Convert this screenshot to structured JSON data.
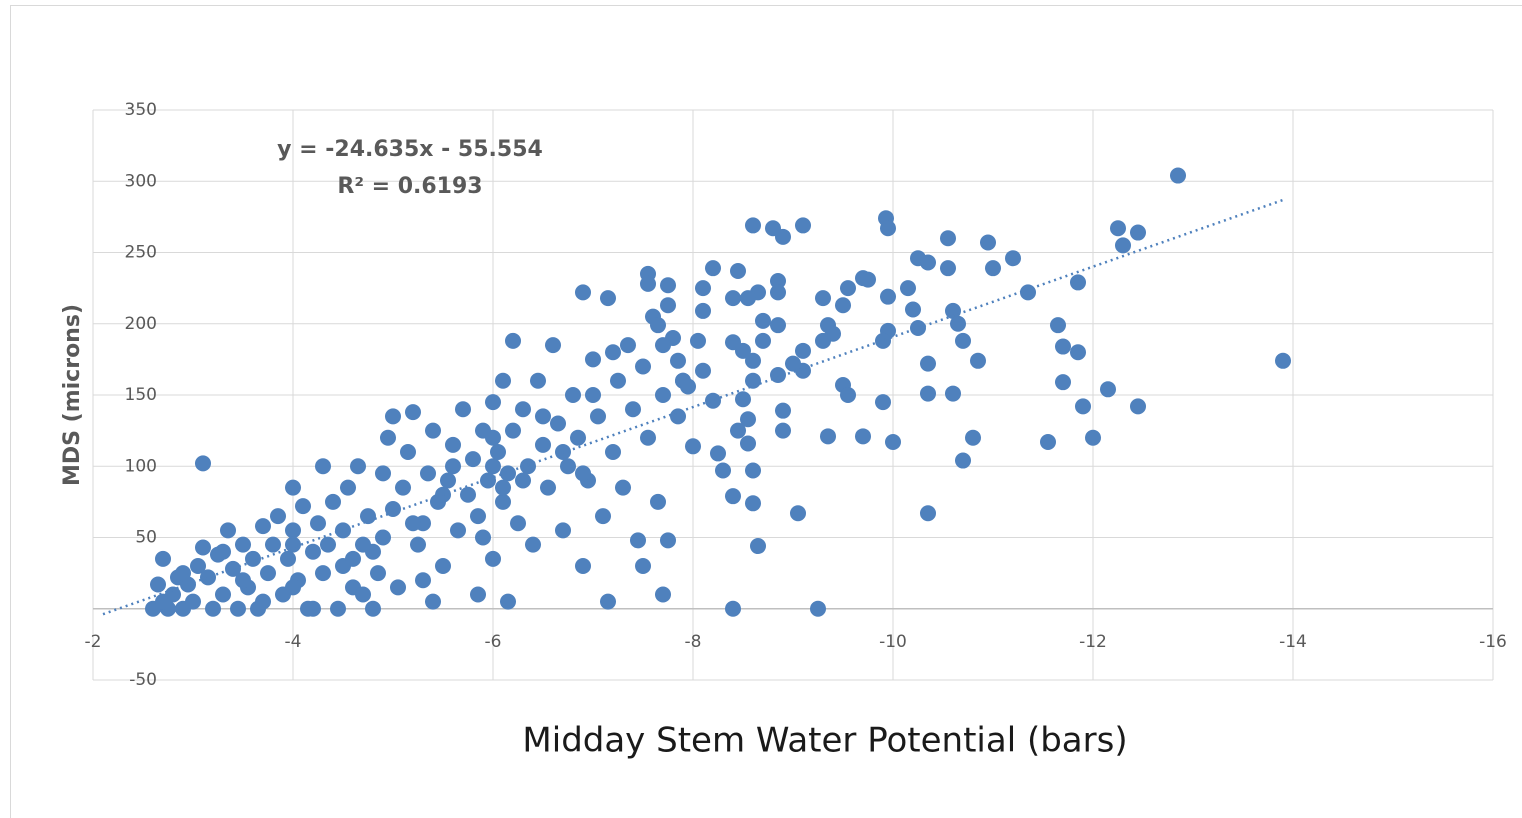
{
  "chart_data": {
    "type": "scatter",
    "x_label": "Midday Stem Water Potential (bars)",
    "y_label": "MDS (microns)",
    "color": "#4f81bd",
    "grid": true,
    "xlim": [
      -2,
      -16
    ],
    "xticks": [
      -2,
      -4,
      -6,
      -8,
      -10,
      -12,
      -14,
      -16
    ],
    "ylim": [
      -50,
      350
    ],
    "yticks": [
      -50,
      0,
      50,
      100,
      150,
      200,
      250,
      300,
      350
    ],
    "trendline": {
      "equation": "y = -24.635x - 55.554",
      "r2": "R² = 0.6193",
      "slope": -24.635,
      "intercept": -55.554,
      "x": [
        -2.1,
        -13.9
      ]
    },
    "x": [
      -2.6,
      -2.65,
      -2.7,
      -2.75,
      -2.8,
      -2.85,
      -2.9,
      -2.95,
      -3.0,
      -3.05,
      -3.1,
      -3.1,
      -3.15,
      -3.2,
      -3.25,
      -3.3,
      -3.35,
      -3.4,
      -3.45,
      -3.5,
      -3.55,
      -3.6,
      -3.65,
      -3.7,
      -3.75,
      -3.8,
      -3.85,
      -3.9,
      -3.95,
      -4.0,
      -4.0,
      -4.05,
      -4.1,
      -4.15,
      -4.2,
      -4.25,
      -4.3,
      -4.3,
      -4.35,
      -4.4,
      -4.45,
      -4.5,
      -4.5,
      -4.55,
      -4.6,
      -4.65,
      -4.7,
      -4.75,
      -4.8,
      -4.85,
      -4.9,
      -4.9,
      -4.95,
      -5.0,
      -5.0,
      -5.05,
      -5.1,
      -5.15,
      -5.2,
      -5.25,
      -5.3,
      -5.35,
      -5.4,
      -5.4,
      -5.45,
      -5.5,
      -5.55,
      -5.6,
      -5.65,
      -5.7,
      -5.75,
      -5.8,
      -5.85,
      -5.85,
      -5.9,
      -5.95,
      -6.0,
      -6.0,
      -6.05,
      -6.1,
      -6.1,
      -6.15,
      -6.15,
      -6.2,
      -6.2,
      -6.25,
      -6.3,
      -6.35,
      -6.4,
      -6.45,
      -6.5,
      -6.55,
      -6.6,
      -6.65,
      -6.7,
      -6.75,
      -6.8,
      -6.85,
      -6.9,
      -6.9,
      -6.95,
      -7.0,
      -7.05,
      -7.1,
      -7.15,
      -7.15,
      -7.2,
      -7.25,
      -7.3,
      -7.35,
      -7.4,
      -7.45,
      -7.5,
      -7.5,
      -7.55,
      -7.6,
      -7.65,
      -7.7,
      -7.7,
      -7.75,
      -7.8,
      -7.85,
      -7.9,
      -2.9,
      -3.3,
      -3.7,
      -4.0,
      -4.2,
      -4.6,
      -4.7,
      -5.2,
      -5.3,
      -5.6,
      -5.9,
      -6.0,
      -6.3,
      -6.5,
      -6.7,
      -6.9,
      -7.0,
      -7.2,
      -6.0,
      -6.1,
      -5.5,
      -4.8,
      -4.0,
      -3.5,
      -2.7,
      -12.85,
      -13.9,
      -9.93,
      -9.95,
      -8.6,
      -9.1,
      -8.8,
      -8.9,
      -12.25,
      -12.45,
      -12.3,
      -11.35,
      -11.55,
      -12.0,
      -12.15,
      -12.45,
      -11.9,
      -11.85,
      -11.65,
      -11.7,
      -11.85,
      -11.7,
      -10.95,
      -11.0,
      -11.2,
      -10.55,
      -10.25,
      -10.35,
      -10.55,
      -10.6,
      -10.65,
      -10.7,
      -10.85,
      -10.8,
      -10.7,
      -10.6,
      -10.35,
      -10.35,
      -10.35,
      -10.15,
      -10.2,
      -10.25,
      -9.95,
      -9.9,
      -9.95,
      -10.0,
      -9.9,
      -9.7,
      -9.75,
      -9.55,
      -9.5,
      -9.7,
      -9.5,
      -9.55,
      -9.35,
      -9.4,
      -9.3,
      -9.35,
      -9.3,
      -9.05,
      -9.25,
      -9.1,
      -9.0,
      -8.85,
      -8.9,
      -8.9,
      -8.85,
      -8.85,
      -8.85,
      -9.1,
      -8.2,
      -8.45,
      -8.1,
      -8.4,
      -8.65,
      -8.55,
      -8.7,
      -8.7,
      -8.6,
      -8.5,
      -8.4,
      -8.6,
      -8.5,
      -8.55,
      -8.45,
      -8.55,
      -8.6,
      -8.6,
      -8.4,
      -8.65,
      -8.4,
      -8.25,
      -8.3,
      -8.2,
      -8.1,
      -8.05,
      -8.1,
      -7.75,
      -7.75,
      -7.55,
      -7.55,
      -7.65,
      -7.7,
      -7.9,
      -8.0,
      -7.85,
      -7.95
    ],
    "values": [
      0,
      17,
      35,
      0,
      10,
      22,
      0,
      17,
      5,
      30,
      43,
      102,
      22,
      0,
      38,
      10,
      55,
      28,
      0,
      45,
      15,
      35,
      0,
      58,
      25,
      45,
      65,
      10,
      35,
      85,
      55,
      20,
      72,
      0,
      40,
      60,
      100,
      25,
      45,
      75,
      0,
      30,
      55,
      85,
      15,
      100,
      45,
      65,
      0,
      25,
      95,
      50,
      120,
      135,
      70,
      15,
      85,
      110,
      138,
      45,
      60,
      95,
      5,
      125,
      75,
      30,
      90,
      115,
      55,
      140,
      80,
      105,
      10,
      65,
      125,
      90,
      145,
      35,
      110,
      160,
      75,
      5,
      95,
      188,
      125,
      60,
      140,
      100,
      45,
      160,
      115,
      85,
      185,
      130,
      55,
      100,
      150,
      120,
      222,
      30,
      90,
      175,
      135,
      65,
      218,
      5,
      110,
      160,
      85,
      185,
      140,
      48,
      170,
      30,
      120,
      205,
      75,
      10,
      150,
      48,
      190,
      135,
      160,
      25,
      40,
      5,
      15,
      0,
      35,
      10,
      60,
      20,
      100,
      50,
      120,
      90,
      135,
      110,
      95,
      150,
      180,
      100,
      85,
      80,
      40,
      45,
      20,
      5,
      304,
      174,
      274,
      267,
      269,
      269,
      267,
      261,
      267,
      264,
      255,
      222,
      117,
      120,
      154,
      142,
      142,
      229,
      199,
      184,
      180,
      159,
      257,
      239,
      246,
      260,
      246,
      243,
      239,
      209,
      200,
      188,
      174,
      120,
      104,
      151,
      151,
      67,
      172,
      225,
      210,
      197,
      195,
      188,
      219,
      117,
      145,
      232,
      231,
      225,
      213,
      121,
      157,
      150,
      199,
      193,
      188,
      121,
      218,
      67,
      0,
      181,
      172,
      164,
      139,
      125,
      199,
      230,
      222,
      167,
      239,
      237,
      225,
      218,
      222,
      218,
      202,
      188,
      174,
      181,
      187,
      160,
      147,
      133,
      125,
      116,
      97,
      74,
      79,
      44,
      0,
      109,
      97,
      146,
      167,
      188,
      209,
      227,
      213,
      235,
      228,
      199,
      185,
      160,
      114,
      174,
      156
    ]
  }
}
